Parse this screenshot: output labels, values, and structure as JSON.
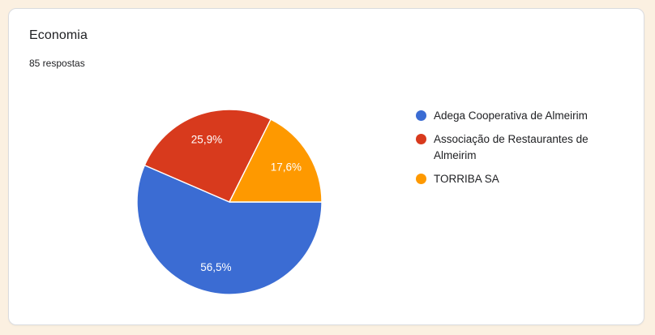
{
  "card": {
    "title": "Economia",
    "subtitle": "85 respostas"
  },
  "colors": {
    "page_background": "#fbf0e1",
    "card_background": "#ffffff",
    "card_border": "#dadce0",
    "text": "#202124",
    "slice_label_text": "#ffffff"
  },
  "chart_data": {
    "type": "pie",
    "title": "Economia",
    "subtitle": "85 respostas",
    "total_responses": 85,
    "legend_position": "right",
    "start_at": "3-oclock-clockwise",
    "categories": [
      "Adega Cooperativa de Almeirim",
      "Associação de Restaurantes de Almeirim",
      "TORRIBA SA"
    ],
    "values": [
      56.5,
      25.9,
      17.6
    ],
    "value_labels": [
      "56,5%",
      "25,9%",
      "17,6%"
    ],
    "slice_colors": [
      "#3b6cd3",
      "#d83a1d",
      "#fe9900"
    ]
  }
}
